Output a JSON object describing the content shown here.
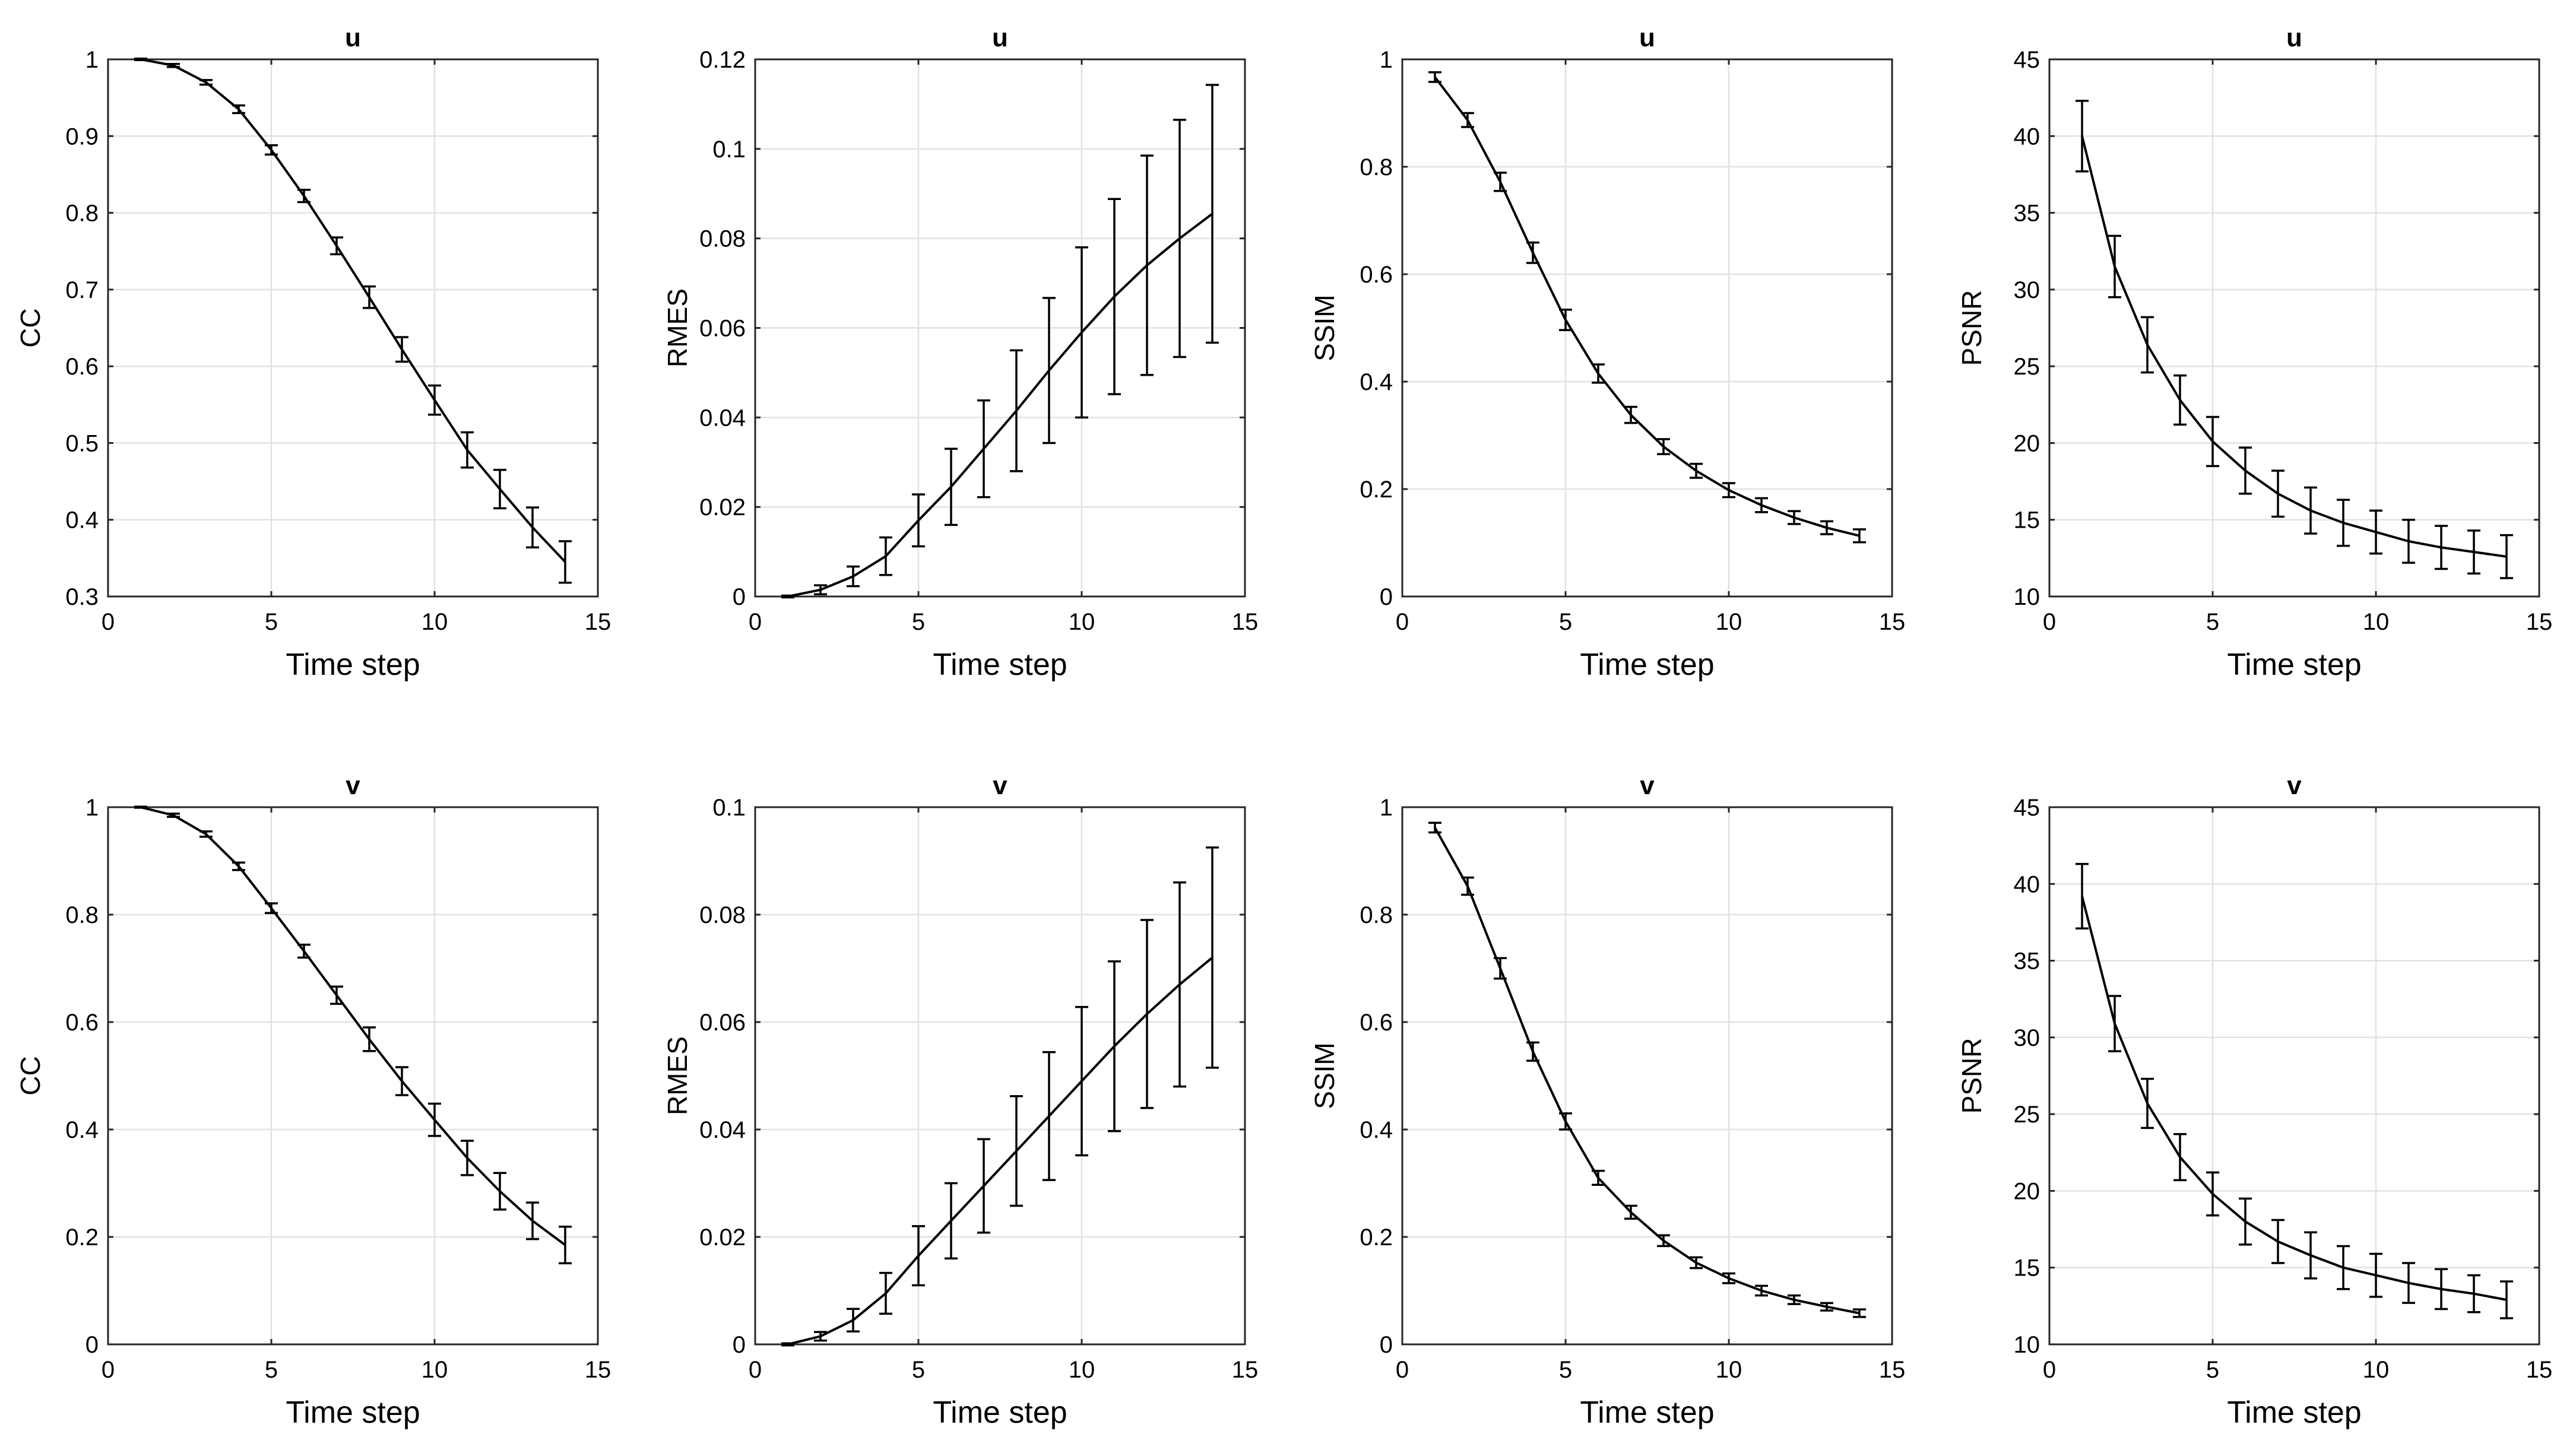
{
  "chart_data": [
    {
      "type": "line",
      "title": "u",
      "xlabel": "Time step",
      "ylabel": "CC",
      "xlim": [
        0,
        15
      ],
      "ylim": [
        0.3,
        1
      ],
      "xticks": [
        "0",
        "5",
        "10",
        "15"
      ],
      "yticks": [
        "0.3",
        "0.4",
        "0.5",
        "0.6",
        "0.7",
        "0.8",
        "0.9",
        "1"
      ],
      "x": [
        1,
        2,
        3,
        4,
        5,
        6,
        7,
        8,
        9,
        10,
        11,
        12,
        13,
        14
      ],
      "values": [
        1.0,
        0.992,
        0.97,
        0.935,
        0.882,
        0.822,
        0.757,
        0.69,
        0.622,
        0.556,
        0.491,
        0.44,
        0.39,
        0.345
      ],
      "error": [
        0.001,
        0.002,
        0.003,
        0.005,
        0.006,
        0.008,
        0.011,
        0.014,
        0.016,
        0.019,
        0.023,
        0.025,
        0.026,
        0.027
      ]
    },
    {
      "type": "line",
      "title": "u",
      "xlabel": "Time step",
      "ylabel": "RMES",
      "xlim": [
        0,
        15
      ],
      "ylim": [
        0,
        0.12
      ],
      "xticks": [
        "0",
        "5",
        "10",
        "15"
      ],
      "yticks": [
        "0",
        "0.02",
        "0.04",
        "0.06",
        "0.08",
        "0.1",
        "0.12"
      ],
      "x": [
        1,
        2,
        3,
        4,
        5,
        6,
        7,
        8,
        9,
        10,
        11,
        12,
        13,
        14
      ],
      "values": [
        0.0,
        0.0015,
        0.0045,
        0.009,
        0.017,
        0.0245,
        0.033,
        0.0415,
        0.0505,
        0.059,
        0.067,
        0.074,
        0.08,
        0.0855
      ],
      "error": [
        0.0002,
        0.001,
        0.0022,
        0.0042,
        0.0058,
        0.0085,
        0.0108,
        0.0135,
        0.0162,
        0.019,
        0.0218,
        0.0245,
        0.0265,
        0.0288
      ]
    },
    {
      "type": "line",
      "title": "u",
      "xlabel": "Time step",
      "ylabel": "SSIM",
      "xlim": [
        0,
        15
      ],
      "ylim": [
        0,
        1
      ],
      "xticks": [
        "0",
        "5",
        "10",
        "15"
      ],
      "yticks": [
        "0",
        "0.2",
        "0.4",
        "0.6",
        "0.8",
        "1"
      ],
      "x": [
        1,
        2,
        3,
        4,
        5,
        6,
        7,
        8,
        9,
        10,
        11,
        12,
        13,
        14
      ],
      "values": [
        0.967,
        0.887,
        0.772,
        0.64,
        0.515,
        0.415,
        0.338,
        0.279,
        0.234,
        0.198,
        0.17,
        0.147,
        0.128,
        0.113
      ],
      "error": [
        0.009,
        0.013,
        0.017,
        0.019,
        0.019,
        0.017,
        0.015,
        0.014,
        0.013,
        0.013,
        0.013,
        0.012,
        0.012,
        0.012
      ]
    },
    {
      "type": "line",
      "title": "u",
      "xlabel": "Time step",
      "ylabel": "PSNR",
      "xlim": [
        0,
        15
      ],
      "ylim": [
        10,
        45
      ],
      "xticks": [
        "0",
        "5",
        "10",
        "15"
      ],
      "yticks": [
        "10",
        "15",
        "20",
        "25",
        "30",
        "35",
        "40",
        "45"
      ],
      "x": [
        1,
        2,
        3,
        4,
        5,
        6,
        7,
        8,
        9,
        10,
        11,
        12,
        13,
        14
      ],
      "values": [
        40.0,
        31.5,
        26.4,
        22.8,
        20.1,
        18.2,
        16.7,
        15.6,
        14.8,
        14.2,
        13.6,
        13.2,
        12.9,
        12.6
      ],
      "error": [
        2.3,
        2.0,
        1.8,
        1.6,
        1.6,
        1.5,
        1.5,
        1.5,
        1.5,
        1.4,
        1.4,
        1.4,
        1.4,
        1.4
      ]
    },
    {
      "type": "line",
      "title": "v",
      "xlabel": "Time step",
      "ylabel": "CC",
      "xlim": [
        0,
        15
      ],
      "ylim": [
        0,
        1
      ],
      "xticks": [
        "0",
        "5",
        "10",
        "15"
      ],
      "yticks": [
        "0",
        "0.2",
        "0.4",
        "0.6",
        "0.8",
        "1"
      ],
      "x": [
        1,
        2,
        3,
        4,
        5,
        6,
        7,
        8,
        9,
        10,
        11,
        12,
        13,
        14
      ],
      "values": [
        1.0,
        0.985,
        0.95,
        0.89,
        0.812,
        0.732,
        0.65,
        0.568,
        0.49,
        0.418,
        0.347,
        0.285,
        0.23,
        0.185
      ],
      "error": [
        0.001,
        0.003,
        0.005,
        0.007,
        0.009,
        0.012,
        0.016,
        0.022,
        0.026,
        0.03,
        0.032,
        0.034,
        0.034,
        0.034
      ]
    },
    {
      "type": "line",
      "title": "v",
      "xlabel": "Time step",
      "ylabel": "RMES",
      "xlim": [
        0,
        15
      ],
      "ylim": [
        0,
        0.1
      ],
      "xticks": [
        "0",
        "5",
        "10",
        "15"
      ],
      "yticks": [
        "0",
        "0.02",
        "0.04",
        "0.06",
        "0.08",
        "0.1"
      ],
      "x": [
        1,
        2,
        3,
        4,
        5,
        6,
        7,
        8,
        9,
        10,
        11,
        12,
        13,
        14
      ],
      "values": [
        0.0,
        0.0015,
        0.0045,
        0.0095,
        0.0165,
        0.023,
        0.0295,
        0.036,
        0.0425,
        0.049,
        0.0555,
        0.0615,
        0.067,
        0.072
      ],
      "error": [
        0.0002,
        0.0008,
        0.0021,
        0.0038,
        0.0055,
        0.007,
        0.0087,
        0.0102,
        0.0119,
        0.0138,
        0.0158,
        0.0175,
        0.019,
        0.0205
      ]
    },
    {
      "type": "line",
      "title": "v",
      "xlabel": "Time step",
      "ylabel": "SSIM",
      "xlim": [
        0,
        15
      ],
      "ylim": [
        0,
        1
      ],
      "xticks": [
        "0",
        "5",
        "10",
        "15"
      ],
      "yticks": [
        "0",
        "0.2",
        "0.4",
        "0.6",
        "0.8",
        "1"
      ],
      "x": [
        1,
        2,
        3,
        4,
        5,
        6,
        7,
        8,
        9,
        10,
        11,
        12,
        13,
        14
      ],
      "values": [
        0.962,
        0.853,
        0.7,
        0.545,
        0.415,
        0.31,
        0.246,
        0.193,
        0.152,
        0.123,
        0.1,
        0.083,
        0.07,
        0.058
      ],
      "error": [
        0.009,
        0.016,
        0.019,
        0.017,
        0.015,
        0.013,
        0.012,
        0.01,
        0.01,
        0.009,
        0.009,
        0.008,
        0.007,
        0.007
      ]
    },
    {
      "type": "line",
      "title": "v",
      "xlabel": "Time step",
      "ylabel": "PSNR",
      "xlim": [
        0,
        15
      ],
      "ylim": [
        10,
        45
      ],
      "xticks": [
        "0",
        "5",
        "10",
        "15"
      ],
      "yticks": [
        "10",
        "15",
        "20",
        "25",
        "30",
        "35",
        "40",
        "45"
      ],
      "x": [
        1,
        2,
        3,
        4,
        5,
        6,
        7,
        8,
        9,
        10,
        11,
        12,
        13,
        14
      ],
      "values": [
        39.2,
        30.9,
        25.7,
        22.2,
        19.8,
        18.0,
        16.7,
        15.8,
        15.0,
        14.5,
        14.0,
        13.6,
        13.3,
        12.9
      ],
      "error": [
        2.1,
        1.8,
        1.6,
        1.5,
        1.4,
        1.5,
        1.4,
        1.5,
        1.4,
        1.4,
        1.3,
        1.3,
        1.2,
        1.2
      ]
    }
  ]
}
